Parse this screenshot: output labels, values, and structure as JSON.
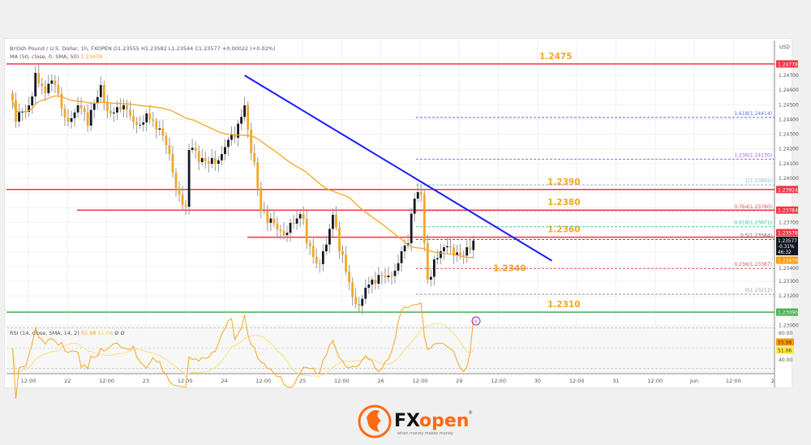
{
  "header": {
    "symbol_line": "British Pound / U.S. Dollar, 1h, FXOPEN  O1.23555  H1.23582  L1.23544  C1.23577  +0.00022 (+0.02%)",
    "ma_label": "MA (50, close, 0, SMA, 50)",
    "ma_value": "1.23439"
  },
  "rsi": {
    "label": "RSI (14, close, SMA, 14, 2)",
    "value": "55.98",
    "sma_value": "51.06",
    "extra": "Ø  Ø"
  },
  "price_axis": {
    "currency": "USD",
    "ticks": [
      "1.24700",
      "1.24600",
      "1.24500",
      "1.24400",
      "1.24300",
      "1.24200",
      "1.24100",
      "1.24000",
      "1.23700",
      "1.23400",
      "1.23300",
      "1.23200",
      "1.23000"
    ],
    "badges": [
      {
        "text": "1.24778",
        "color": "#f23645"
      },
      {
        "text": "1.23924",
        "color": "#f23645"
      },
      {
        "text": "1.23784",
        "color": "#f23645"
      },
      {
        "text": "1.23578",
        "color": "#f23645"
      },
      {
        "text": "1.23439",
        "color": "#ff9800"
      },
      {
        "text": "1.23090",
        "color": "#4caf50"
      }
    ],
    "current_price": "1.23577",
    "current_change": "-0.31%",
    "countdown": "46:32",
    "rsi_ticks": [
      "60.00",
      "40.00"
    ],
    "rsi_badges": [
      {
        "text": "55.98",
        "color": "#ff9800"
      },
      {
        "text": "51.06",
        "color": "#ffeb3b"
      }
    ]
  },
  "time_axis": [
    "12:00",
    "22",
    "12:00",
    "23",
    "12:00",
    "24",
    "12:00",
    "25",
    "12:00",
    "26",
    "12:00",
    "29",
    "12:00",
    "30",
    "12:00",
    "31",
    "12:00",
    "Jun",
    "12:00",
    "2"
  ],
  "levels": [
    {
      "label": "1.2475",
      "price": 1.24778,
      "color": "#f23645",
      "from": "full"
    },
    {
      "label": "1.2390",
      "price": 1.23924,
      "color": "#f23645",
      "from": "full"
    },
    {
      "label": "1.2380",
      "price": 1.23784,
      "color": "#f23645",
      "from": "partial"
    },
    {
      "label": "1.2360",
      "price": 1.236,
      "color": "#f23645",
      "from": "partial"
    },
    {
      "label": "1.2340",
      "price": 1.234,
      "color": "#f5a623",
      "from": "none"
    },
    {
      "label": "1.2310",
      "price": 1.2309,
      "color": "#4caf50",
      "from": "full"
    }
  ],
  "fibonacci": [
    {
      "label": "1.618(1.24414)",
      "price": 1.24414,
      "color": "#5b6bd6"
    },
    {
      "label": "1.236(1.24130)",
      "price": 1.2413,
      "color": "#b05fd8"
    },
    {
      "label": "1(1.23955)",
      "price": 1.23955,
      "color": "#7fb8e6"
    },
    {
      "label": "0.764(1.23780)",
      "price": 1.2378,
      "color": "#d9534f"
    },
    {
      "label": "0.618(1.23671)",
      "price": 1.23671,
      "color": "#3cc9a0"
    },
    {
      "label": "0.5(1.23584)",
      "price": 1.23584,
      "color": "#666666"
    },
    {
      "label": "0.236(1.23387)",
      "price": 1.23387,
      "color": "#d9534f"
    },
    {
      "label": "0(1.23212)",
      "price": 1.23212,
      "color": "#999999"
    }
  ],
  "trendline": {
    "color": "#1a1aff",
    "start": {
      "day": "24",
      "time": "06:00",
      "price": 1.247
    },
    "end": {
      "day": "30",
      "time": "04:00",
      "price": 1.2344
    }
  },
  "colors": {
    "bull": "#131722",
    "bear": "#f5a623",
    "ma": "#f5a623",
    "rsi": "#f5a623",
    "rsi_sma": "#f7e27a",
    "brand": "#ff6a13"
  },
  "chart_data": {
    "type": "candlestick",
    "timeframe": "1h",
    "closes": [
      {
        "day": "21",
        "time": "06:00",
        "close": 1.24579
      },
      {
        "day": "21",
        "time": "08:00",
        "close": 1.24386
      },
      {
        "day": "21",
        "time": "12:00",
        "close": 1.24496
      },
      {
        "day": "21",
        "time": "14:00",
        "close": 1.24717
      },
      {
        "day": "21",
        "time": "17:00",
        "close": 1.24579
      },
      {
        "day": "21",
        "time": "20:00",
        "close": 1.24634
      },
      {
        "day": "21",
        "time": "23:00",
        "close": 1.24413
      },
      {
        "day": "22",
        "time": "03:00",
        "close": 1.24496
      },
      {
        "day": "22",
        "time": "06:00",
        "close": 1.24358
      },
      {
        "day": "22",
        "time": "10:00",
        "close": 1.24634
      },
      {
        "day": "22",
        "time": "13:00",
        "close": 1.24441
      },
      {
        "day": "22",
        "time": "16:00",
        "close": 1.24468
      },
      {
        "day": "22",
        "time": "20:00",
        "close": 1.24386
      },
      {
        "day": "23",
        "time": "00:00",
        "close": 1.24441
      },
      {
        "day": "23",
        "time": "03:00",
        "close": 1.24331
      },
      {
        "day": "23",
        "time": "07:00",
        "close": 1.24165
      },
      {
        "day": "23",
        "time": "10:00",
        "close": 1.2389
      },
      {
        "day": "23",
        "time": "12:00",
        "close": 1.23807
      },
      {
        "day": "23",
        "time": "13:00",
        "close": 1.24193
      },
      {
        "day": "23",
        "time": "16:00",
        "close": 1.2411
      },
      {
        "day": "23",
        "time": "20:00",
        "close": 1.24138
      },
      {
        "day": "23",
        "time": "23:00",
        "close": 1.24165
      },
      {
        "day": "24",
        "time": "03:00",
        "close": 1.24276
      },
      {
        "day": "24",
        "time": "06:00",
        "close": 1.24496
      },
      {
        "day": "24",
        "time": "07:00",
        "close": 1.24331
      },
      {
        "day": "24",
        "time": "09:00",
        "close": 1.2411
      },
      {
        "day": "24",
        "time": "11:00",
        "close": 1.2378
      },
      {
        "day": "24",
        "time": "13:00",
        "close": 1.23697
      },
      {
        "day": "24",
        "time": "17:00",
        "close": 1.23642
      },
      {
        "day": "24",
        "time": "20:00",
        "close": 1.23697
      },
      {
        "day": "25",
        "time": "00:00",
        "close": 1.23724
      },
      {
        "day": "25",
        "time": "01:00",
        "close": 1.23559
      },
      {
        "day": "25",
        "time": "04:00",
        "close": 1.23421
      },
      {
        "day": "25",
        "time": "06:00",
        "close": 1.23504
      },
      {
        "day": "25",
        "time": "09:00",
        "close": 1.23752
      },
      {
        "day": "25",
        "time": "11:00",
        "close": 1.23504
      },
      {
        "day": "25",
        "time": "13:00",
        "close": 1.23366
      },
      {
        "day": "25",
        "time": "16:00",
        "close": 1.23146
      },
      {
        "day": "25",
        "time": "19:00",
        "close": 1.23256
      },
      {
        "day": "25",
        "time": "22:00",
        "close": 1.23283
      },
      {
        "day": "26",
        "time": "02:00",
        "close": 1.23339
      },
      {
        "day": "26",
        "time": "06:00",
        "close": 1.23504
      },
      {
        "day": "26",
        "time": "08:00",
        "close": 1.23559
      },
      {
        "day": "26",
        "time": "10:00",
        "close": 1.23862
      },
      {
        "day": "26",
        "time": "12:00",
        "close": 1.2389
      },
      {
        "day": "26",
        "time": "13:00",
        "close": 1.23559
      },
      {
        "day": "26",
        "time": "14:00",
        "close": 1.23311
      },
      {
        "day": "26",
        "time": "16:00",
        "close": 1.23449
      },
      {
        "day": "26",
        "time": "18:00",
        "close": 1.23504
      },
      {
        "day": "26",
        "time": "22:00",
        "close": 1.23476
      },
      {
        "day": "29",
        "time": "02:00",
        "close": 1.23531
      },
      {
        "day": "29",
        "time": "04:00",
        "close": 1.23577
      }
    ],
    "ylim": [
      1.229,
      1.248
    ],
    "rsi_ylim": [
      30,
      75
    ]
  }
}
